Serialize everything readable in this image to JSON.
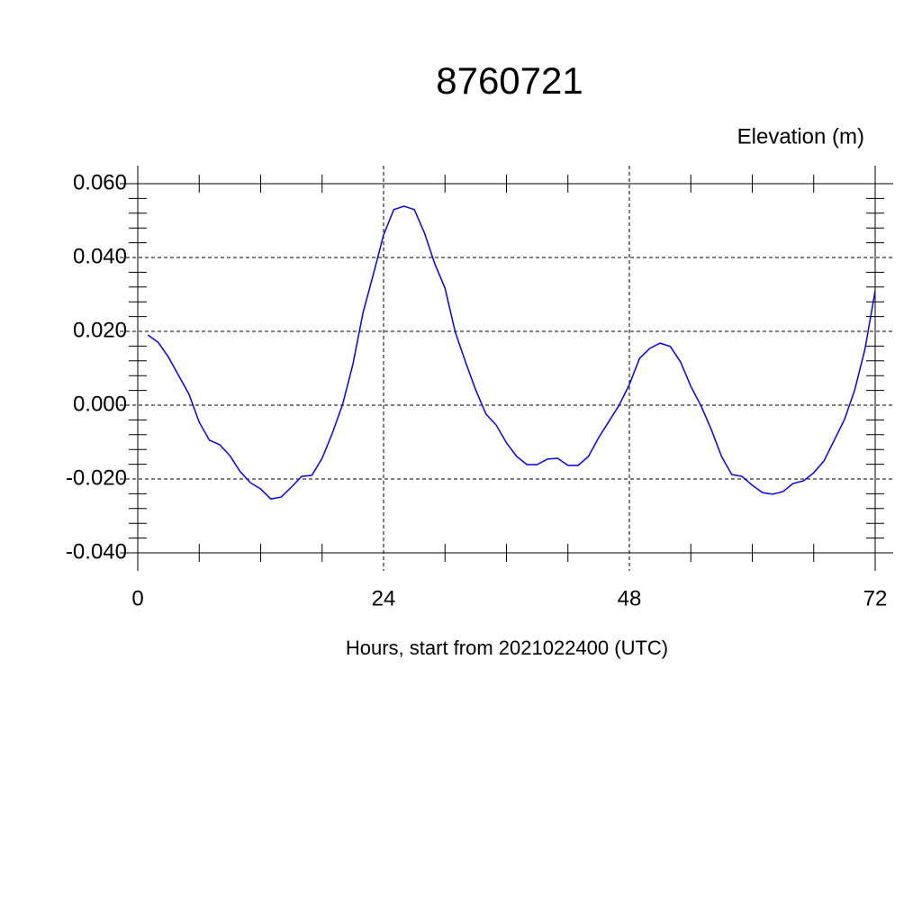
{
  "chart_data": {
    "type": "line",
    "title": "8760721",
    "ylabel": "Elevation (m)",
    "xlabel": "Hours, start from 2021022400 (UTC)",
    "x": [
      1,
      2,
      3,
      4,
      5,
      6,
      7,
      8,
      9,
      10,
      11,
      12,
      13,
      14,
      15,
      16,
      17,
      18,
      19,
      20,
      21,
      22,
      23,
      24,
      25,
      26,
      27,
      28,
      29,
      30,
      31,
      32,
      33,
      34,
      35,
      36,
      37,
      38,
      39,
      40,
      41,
      42,
      43,
      44,
      45,
      46,
      47,
      48,
      49,
      50,
      51,
      52,
      53,
      54,
      55,
      56,
      57,
      58,
      59,
      60,
      61,
      62,
      63,
      64,
      65,
      66,
      67,
      68,
      69,
      70,
      71,
      72
    ],
    "series": [
      {
        "name": "Elevation",
        "color": "#0000ff",
        "values": [
          0.019,
          0.017,
          0.013,
          0.008,
          0.003,
          -0.0046,
          -0.0095,
          -0.0107,
          -0.0137,
          -0.018,
          -0.021,
          -0.0227,
          -0.0254,
          -0.0249,
          -0.0222,
          -0.0193,
          -0.019,
          -0.0144,
          -0.0076,
          0.0002,
          0.011,
          0.0251,
          0.0354,
          0.0461,
          0.053,
          0.0539,
          0.053,
          0.0466,
          0.0383,
          0.0317,
          0.0198,
          0.0117,
          0.0041,
          -0.0024,
          -0.0054,
          -0.0102,
          -0.0139,
          -0.0161,
          -0.0161,
          -0.0146,
          -0.0144,
          -0.0163,
          -0.0163,
          -0.0139,
          -0.0088,
          -0.0044,
          0,
          0.0056,
          0.0127,
          0.0154,
          0.0168,
          0.0159,
          0.0117,
          0.0051,
          -0.0002,
          -0.0066,
          -0.0139,
          -0.0188,
          -0.0193,
          -0.0217,
          -0.0237,
          -0.0241,
          -0.0234,
          -0.0212,
          -0.0205,
          -0.0183,
          -0.0151,
          -0.0095,
          -0.0039,
          0.0041,
          0.0151,
          0.031
        ]
      }
    ],
    "xlim": [
      0,
      72
    ],
    "xticks": [
      0,
      24,
      48,
      72
    ],
    "ylim": [
      -0.04,
      0.06
    ],
    "yticks": [
      {
        "value": -0.04,
        "label": "-0.040"
      },
      {
        "value": -0.02,
        "label": "-0.020"
      },
      {
        "value": 0,
        "label": "0.000"
      },
      {
        "value": 0.02,
        "label": "0.020"
      },
      {
        "value": 0.04,
        "label": "0.040"
      },
      {
        "value": 0.06,
        "label": "0.060"
      }
    ],
    "grid": true
  }
}
